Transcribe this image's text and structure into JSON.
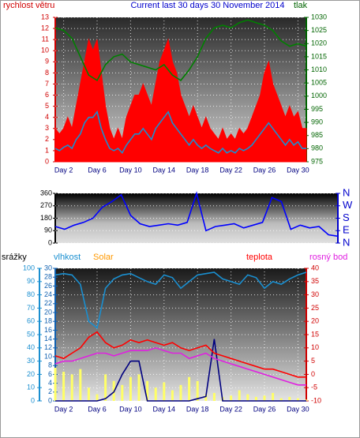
{
  "chart_data": [
    {
      "type": "line",
      "title": "Current last 30 days 30 November 2014",
      "ylabel": "rychlost větru",
      "y2label": "tlak",
      "ycolor": "#d00000",
      "y2color": "#006400",
      "xlim": [
        1,
        31
      ],
      "xticks": [
        {
          "value": 2,
          "label": "Day 2"
        },
        {
          "value": 6,
          "label": "Day 6"
        },
        {
          "value": 10,
          "label": "Day 10"
        },
        {
          "value": 14,
          "label": "Day 14"
        },
        {
          "value": 18,
          "label": "Day 18"
        },
        {
          "value": 22,
          "label": "Day 22"
        },
        {
          "value": 26,
          "label": "Day 26"
        },
        {
          "value": 30,
          "label": "Day 30"
        }
      ],
      "ylim": [
        0,
        13
      ],
      "yticks": [
        0,
        1,
        2,
        3,
        4,
        5,
        6,
        7,
        8,
        9,
        10,
        11,
        12,
        13
      ],
      "y2lim": [
        975,
        1030
      ],
      "y2ticks": [
        975,
        980,
        985,
        990,
        995,
        1000,
        1005,
        1010,
        1015,
        1020,
        1025,
        1030
      ],
      "grid": true,
      "series": [
        {
          "style": "area",
          "color": "#ff0000",
          "axis": "y",
          "x": [
            1,
            1.5,
            2,
            2.5,
            3,
            3.5,
            4,
            4.5,
            5,
            5.5,
            6,
            6.5,
            7,
            7.5,
            8,
            8.5,
            9,
            9.5,
            10,
            10.5,
            11,
            11.5,
            12,
            12.5,
            13,
            13.5,
            14,
            14.5,
            15,
            15.5,
            16,
            16.5,
            17,
            17.5,
            18,
            18.5,
            19,
            19.5,
            20,
            20.5,
            21,
            21.5,
            22,
            22.5,
            23,
            23.5,
            24,
            24.5,
            25,
            25.5,
            26,
            26.5,
            27,
            27.5,
            28,
            28.5,
            29,
            29.5,
            30,
            30.5,
            31
          ],
          "values": [
            3,
            2.5,
            3,
            4,
            3,
            5,
            7,
            9,
            11,
            10,
            11,
            8,
            5,
            3,
            2,
            3,
            2,
            4,
            5,
            6,
            6,
            7,
            6,
            5,
            7,
            9,
            10,
            11,
            9,
            8,
            6,
            5,
            4,
            5,
            4,
            3,
            4,
            3,
            2.5,
            2,
            3,
            2,
            2.5,
            2,
            3,
            2.5,
            3,
            4,
            5,
            6,
            8,
            9,
            7,
            6,
            5,
            4,
            5,
            4,
            4.5,
            3,
            3
          ]
        },
        {
          "style": "line",
          "color": "#1a8fd0",
          "axis": "y",
          "x": [
            1,
            1.5,
            2,
            2.5,
            3,
            3.5,
            4,
            4.5,
            5,
            5.5,
            6,
            6.5,
            7,
            7.5,
            8,
            8.5,
            9,
            9.5,
            10,
            10.5,
            11,
            11.5,
            12,
            12.5,
            13,
            13.5,
            14,
            14.5,
            15,
            15.5,
            16,
            16.5,
            17,
            17.5,
            18,
            18.5,
            19,
            19.5,
            20,
            20.5,
            21,
            21.5,
            22,
            22.5,
            23,
            23.5,
            24,
            24.5,
            25,
            25.5,
            26,
            26.5,
            27,
            27.5,
            28,
            28.5,
            29,
            29.5,
            30,
            30.5,
            31
          ],
          "values": [
            1.2,
            1,
            1.3,
            1.5,
            1.2,
            2,
            2.5,
            3.5,
            4,
            4,
            4.5,
            3,
            2,
            1.2,
            1,
            1.2,
            0.8,
            1.5,
            2,
            2.5,
            2.5,
            3,
            2.5,
            2,
            3,
            3.5,
            4,
            4.5,
            3.5,
            3,
            2.5,
            2,
            1.5,
            2,
            1.5,
            1.2,
            1.5,
            1.2,
            1,
            0.8,
            1.2,
            0.8,
            1,
            0.8,
            1.2,
            1,
            1.2,
            1.5,
            2,
            2.5,
            3,
            3.5,
            3,
            2.5,
            2,
            1.5,
            2,
            1.5,
            1.8,
            1.2,
            1.2
          ]
        },
        {
          "style": "line",
          "color": "#008000",
          "axis": "y2",
          "x": [
            1,
            2,
            3,
            4,
            5,
            6,
            7,
            8,
            9,
            10,
            11,
            12,
            13,
            14,
            15,
            16,
            17,
            18,
            19,
            20,
            21,
            22,
            23,
            24,
            25,
            26,
            27,
            28,
            29,
            30,
            31
          ],
          "values": [
            1026,
            1025,
            1022,
            1015,
            1008,
            1006,
            1012,
            1015,
            1016,
            1013,
            1012,
            1011,
            1010,
            1012,
            1008,
            1006,
            1010,
            1015,
            1022,
            1026,
            1027,
            1026,
            1028,
            1029,
            1028,
            1027,
            1025,
            1021,
            1019,
            1020,
            1019
          ]
        }
      ]
    },
    {
      "type": "line",
      "ycolor": "#000000",
      "y2color": "#0000cc",
      "xlim": [
        1,
        31
      ],
      "ylim": [
        0,
        360
      ],
      "yticks": [
        0,
        90,
        180,
        270,
        360
      ],
      "y2lim": [
        0,
        360
      ],
      "y2ticks": [
        {
          "value": 360,
          "label": "N"
        },
        {
          "value": 270,
          "label": "W"
        },
        {
          "value": 180,
          "label": "S"
        },
        {
          "value": 90,
          "label": "E"
        },
        {
          "value": 0,
          "label": "N"
        }
      ],
      "grid": true,
      "series": [
        {
          "style": "line",
          "color": "#0000ff",
          "axis": "y",
          "x": [
            1,
            2,
            3,
            4,
            5,
            6,
            7,
            8,
            9,
            10,
            11,
            12,
            13,
            14,
            15,
            16,
            17,
            18,
            19,
            20,
            21,
            22,
            23,
            24,
            25,
            26,
            27,
            28,
            29,
            30,
            31
          ],
          "values": [
            120,
            100,
            130,
            150,
            180,
            260,
            300,
            350,
            200,
            140,
            120,
            130,
            140,
            130,
            150,
            360,
            90,
            120,
            130,
            140,
            110,
            130,
            150,
            330,
            300,
            100,
            130,
            110,
            120,
            60,
            50
          ]
        }
      ]
    },
    {
      "type": "line",
      "ycolor": "#1a8fd0",
      "y2color": "#1060b0",
      "y3color": "#d00000",
      "xlim": [
        1,
        31
      ],
      "xticks": [
        {
          "value": 2,
          "label": "Day 2"
        },
        {
          "value": 6,
          "label": "Day 6"
        },
        {
          "value": 10,
          "label": "Day 10"
        },
        {
          "value": 14,
          "label": "Day 14"
        },
        {
          "value": 18,
          "label": "Day 18"
        },
        {
          "value": 22,
          "label": "Day 22"
        },
        {
          "value": 26,
          "label": "Day 26"
        },
        {
          "value": 30,
          "label": "Day 30"
        }
      ],
      "ylim": [
        0,
        100
      ],
      "yticks": [
        0,
        10,
        20,
        30,
        40,
        50,
        60,
        70,
        80,
        90,
        100
      ],
      "y2lim": [
        0,
        30
      ],
      "y2ticks": [
        0,
        2,
        4,
        6,
        8,
        10,
        12,
        14,
        16,
        18,
        20,
        22,
        24,
        26,
        28,
        30
      ],
      "y3lim": [
        -10,
        40
      ],
      "y3ticks": [
        -10,
        -5,
        0,
        5,
        10,
        15,
        20,
        25,
        30,
        35,
        40
      ],
      "grid": true,
      "series": [
        {
          "name": "srážky",
          "style": "line",
          "color": "#000080",
          "label_color": "#000000",
          "axis": "y2",
          "x": [
            1,
            2,
            3,
            4,
            5,
            6,
            7,
            8,
            9,
            10,
            11,
            12,
            13,
            14,
            15,
            16,
            17,
            18,
            19,
            20,
            21,
            22,
            23,
            24,
            25,
            26,
            27,
            28,
            29,
            30,
            31
          ],
          "values": [
            0,
            0,
            0,
            0,
            0,
            0,
            0.5,
            2,
            6,
            9,
            9,
            0,
            0,
            0,
            0,
            0,
            0,
            0.5,
            1,
            14,
            0,
            0,
            0,
            0,
            0,
            0,
            0,
            0,
            0,
            0,
            0
          ]
        },
        {
          "name": "vlhkost",
          "style": "line",
          "color": "#1a8fd0",
          "axis": "y",
          "x": [
            1,
            2,
            3,
            4,
            5,
            6,
            7,
            8,
            9,
            10,
            11,
            12,
            13,
            14,
            15,
            16,
            17,
            18,
            19,
            20,
            21,
            22,
            23,
            24,
            25,
            26,
            27,
            28,
            29,
            30,
            31
          ],
          "values": [
            95,
            96,
            95,
            88,
            60,
            55,
            85,
            92,
            95,
            96,
            93,
            90,
            88,
            95,
            93,
            85,
            90,
            95,
            96,
            97,
            92,
            90,
            88,
            95,
            93,
            85,
            90,
            88,
            92,
            95,
            97
          ]
        },
        {
          "name": "Solar",
          "style": "bar",
          "color": "#ffff66",
          "label_color": "#ff9900",
          "axis": "y",
          "x": [
            1,
            2,
            3,
            4,
            5,
            6,
            7,
            8,
            9,
            10,
            11,
            12,
            13,
            14,
            15,
            16,
            17,
            18,
            19,
            20,
            21,
            22,
            23,
            24,
            25,
            26,
            27,
            28,
            29,
            30,
            31
          ],
          "values": [
            25,
            22,
            20,
            24,
            10,
            5,
            20,
            15,
            12,
            18,
            20,
            15,
            10,
            14,
            8,
            12,
            18,
            15,
            5,
            6,
            3,
            4,
            8,
            5,
            3,
            4,
            6,
            2,
            3,
            2,
            1
          ]
        },
        {
          "name": "teplota",
          "style": "line",
          "color": "#ff0000",
          "axis": "y3",
          "x": [
            1,
            2,
            3,
            4,
            5,
            6,
            7,
            8,
            9,
            10,
            11,
            12,
            13,
            14,
            15,
            16,
            17,
            18,
            19,
            20,
            21,
            22,
            23,
            24,
            25,
            26,
            27,
            28,
            29,
            30,
            31
          ],
          "values": [
            7,
            6,
            8,
            10,
            14,
            16,
            12,
            10,
            11,
            13,
            12,
            13,
            12,
            11,
            12,
            10,
            9,
            10,
            11,
            8,
            7,
            6,
            5,
            4,
            3,
            2,
            2,
            1,
            0,
            -1,
            -1
          ]
        },
        {
          "name": "rosný bod",
          "style": "line",
          "color": "#e020e0",
          "axis": "y3",
          "x": [
            1,
            2,
            3,
            4,
            5,
            6,
            7,
            8,
            9,
            10,
            11,
            12,
            13,
            14,
            15,
            16,
            17,
            18,
            19,
            20,
            21,
            22,
            23,
            24,
            25,
            26,
            27,
            28,
            29,
            30,
            31
          ],
          "values": [
            4,
            5,
            5,
            6,
            7,
            8,
            8,
            7,
            8,
            9,
            9,
            9,
            10,
            9,
            8,
            8,
            6,
            7,
            8,
            6,
            5,
            4,
            3,
            2,
            1,
            0,
            -1,
            -2,
            -3,
            -4,
            -4
          ]
        }
      ]
    }
  ]
}
